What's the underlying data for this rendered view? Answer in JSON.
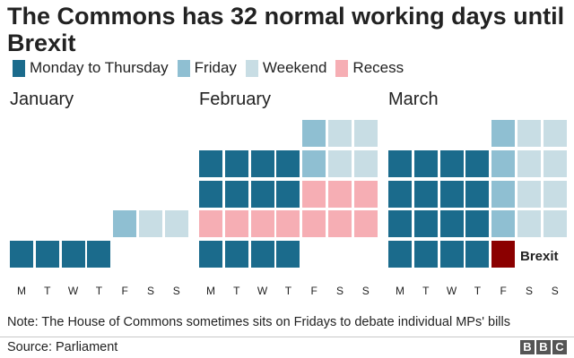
{
  "title": "The Commons has 32 normal working days until Brexit",
  "legend": [
    {
      "label": "Monday to Thursday",
      "color": "#1b6b8c"
    },
    {
      "label": "Friday",
      "color": "#8fbfd2"
    },
    {
      "label": "Weekend",
      "color": "#c8dde4"
    },
    {
      "label": "Recess",
      "color": "#f6aeb4"
    }
  ],
  "brexit_color": "#8b0000",
  "note": "Note: The House of Commons sometimes sits on Fridays to debate individual MPs' bills",
  "source": "Source: Parliament",
  "logo": [
    "B",
    "B",
    "C"
  ],
  "chart_data": {
    "type": "heatmap",
    "title": "The Commons has 32 normal working days until Brexit",
    "day_labels": [
      "M",
      "T",
      "W",
      "T",
      "F",
      "S",
      "S"
    ],
    "categories": [
      "Monday to Thursday",
      "Friday",
      "Weekend",
      "Recess",
      "Brexit"
    ],
    "months": [
      {
        "name": "January",
        "weeks": [
          [
            null,
            null,
            null,
            null,
            "Friday",
            "Weekend",
            "Weekend"
          ],
          [
            "Monday to Thursday",
            "Monday to Thursday",
            "Monday to Thursday",
            "Monday to Thursday",
            null,
            null,
            null
          ]
        ]
      },
      {
        "name": "February",
        "weeks": [
          [
            null,
            null,
            null,
            null,
            "Friday",
            "Weekend",
            "Weekend"
          ],
          [
            "Monday to Thursday",
            "Monday to Thursday",
            "Monday to Thursday",
            "Monday to Thursday",
            "Friday",
            "Weekend",
            "Weekend"
          ],
          [
            "Monday to Thursday",
            "Monday to Thursday",
            "Monday to Thursday",
            "Monday to Thursday",
            "Recess",
            "Recess",
            "Recess"
          ],
          [
            "Recess",
            "Recess",
            "Recess",
            "Recess",
            "Recess",
            "Recess",
            "Recess"
          ],
          [
            "Monday to Thursday",
            "Monday to Thursday",
            "Monday to Thursday",
            "Monday to Thursday",
            null,
            null,
            null
          ]
        ]
      },
      {
        "name": "March",
        "weeks": [
          [
            null,
            null,
            null,
            null,
            "Friday",
            "Weekend",
            "Weekend"
          ],
          [
            "Monday to Thursday",
            "Monday to Thursday",
            "Monday to Thursday",
            "Monday to Thursday",
            "Friday",
            "Weekend",
            "Weekend"
          ],
          [
            "Monday to Thursday",
            "Monday to Thursday",
            "Monday to Thursday",
            "Monday to Thursday",
            "Friday",
            "Weekend",
            "Weekend"
          ],
          [
            "Monday to Thursday",
            "Monday to Thursday",
            "Monday to Thursday",
            "Monday to Thursday",
            "Friday",
            "Weekend",
            "Weekend"
          ],
          [
            "Monday to Thursday",
            "Monday to Thursday",
            "Monday to Thursday",
            "Monday to Thursday",
            "Brexit",
            null,
            null
          ]
        ]
      }
    ],
    "annotations": [
      {
        "text": "Brexit",
        "month": "March",
        "day": "F"
      }
    ]
  }
}
